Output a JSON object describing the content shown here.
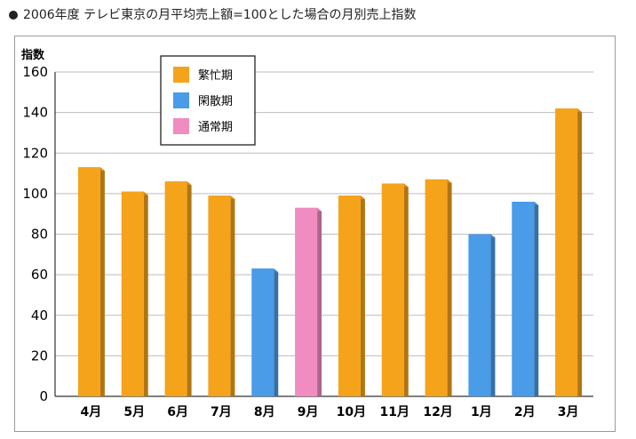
{
  "chart_data": {
    "type": "bar",
    "title": "2006年度 テレビ東京の月平均売上額=100とした場合の月別売上指数",
    "ylabel": "指数",
    "xlabel": "",
    "ylim": [
      0,
      160
    ],
    "yticks": [
      0,
      20,
      40,
      60,
      80,
      100,
      120,
      140,
      160
    ],
    "grid": true,
    "legend_position": "top-left",
    "categories": [
      "4月",
      "5月",
      "6月",
      "7月",
      "8月",
      "9月",
      "10月",
      "11月",
      "12月",
      "1月",
      "2月",
      "3月"
    ],
    "values": [
      113,
      101,
      106,
      99,
      63,
      93,
      99,
      105,
      107,
      80,
      96,
      142
    ],
    "period": [
      "繁忙期",
      "繁忙期",
      "繁忙期",
      "繁忙期",
      "閑散期",
      "通常期",
      "繁忙期",
      "繁忙期",
      "繁忙期",
      "閑散期",
      "閑散期",
      "繁忙期"
    ],
    "legend": [
      {
        "name": "繁忙期",
        "color": "#f5a31a"
      },
      {
        "name": "閑散期",
        "color": "#4a9be8"
      },
      {
        "name": "通常期",
        "color": "#f08cc0"
      }
    ]
  }
}
